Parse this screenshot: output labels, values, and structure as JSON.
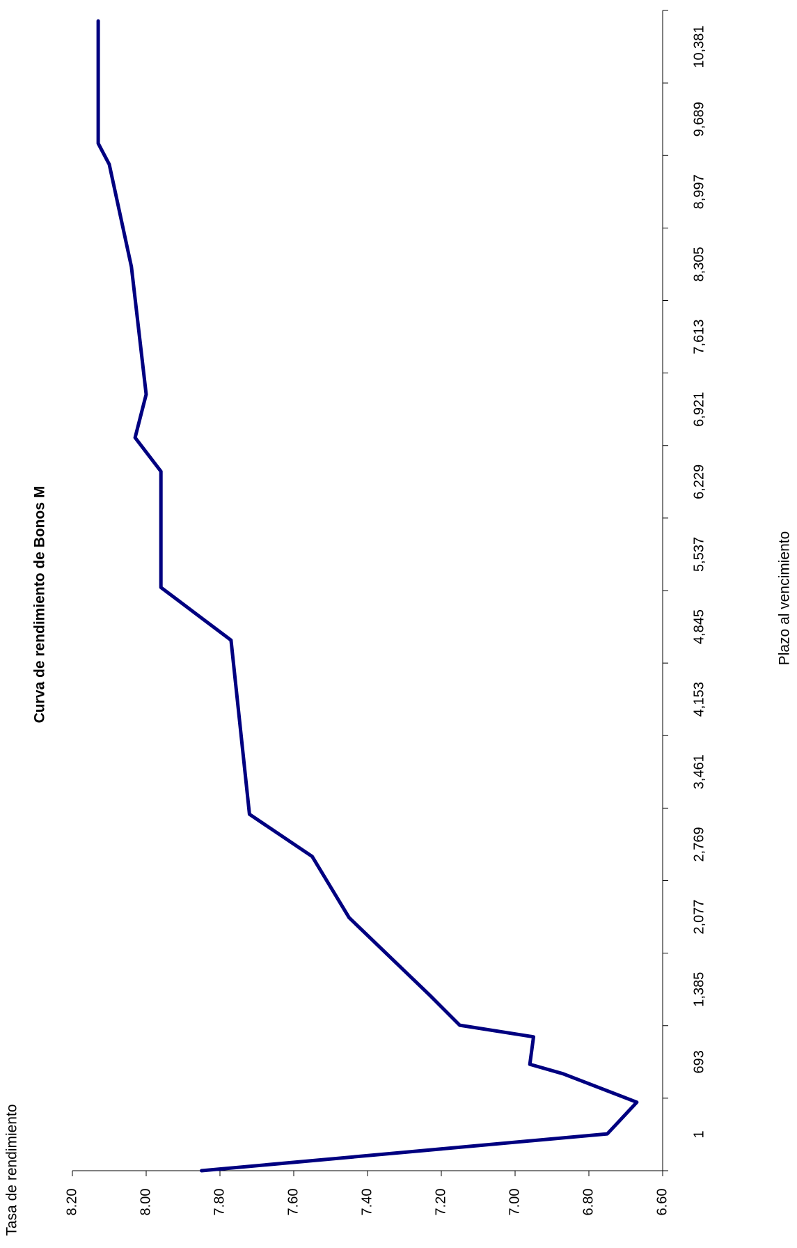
{
  "chart_data": {
    "type": "line",
    "title": "Curva de rendimiento de  Bonos M",
    "xlabel": "Plazo al vencimiento",
    "ylabel": "Tasa de rendimiento",
    "y_ticks": [
      "6.60",
      "6.80",
      "7.00",
      "7.20",
      "7.40",
      "7.60",
      "7.80",
      "8.00",
      "8.20"
    ],
    "ylim": [
      6.6,
      8.2
    ],
    "x_ticks": [
      "1",
      "693",
      "1,385",
      "2,077",
      "2,769",
      "3,461",
      "4,153",
      "4,845",
      "5,537",
      "6,229",
      "6,921",
      "7,613",
      "8,305",
      "8,997",
      "9,689",
      "10,381"
    ],
    "xlim": [
      1,
      11000
    ],
    "orientation": "rotated-90-clockwise",
    "grid": false,
    "legend": "none",
    "line_color": "#000080",
    "series": [
      {
        "values_x": [
          1,
          350,
          650,
          920,
          1010,
          1270,
          1380,
          1660,
          2400,
          2980,
          3380,
          5030,
          5530,
          6630,
          6950,
          7360,
          8570,
          9540,
          9740,
          10900
        ],
        "values_y": [
          7.85,
          6.75,
          6.67,
          6.87,
          6.96,
          6.95,
          7.15,
          7.23,
          7.45,
          7.55,
          7.72,
          7.77,
          7.96,
          7.96,
          8.03,
          8.0,
          8.04,
          8.1,
          8.13,
          8.13
        ]
      }
    ]
  }
}
